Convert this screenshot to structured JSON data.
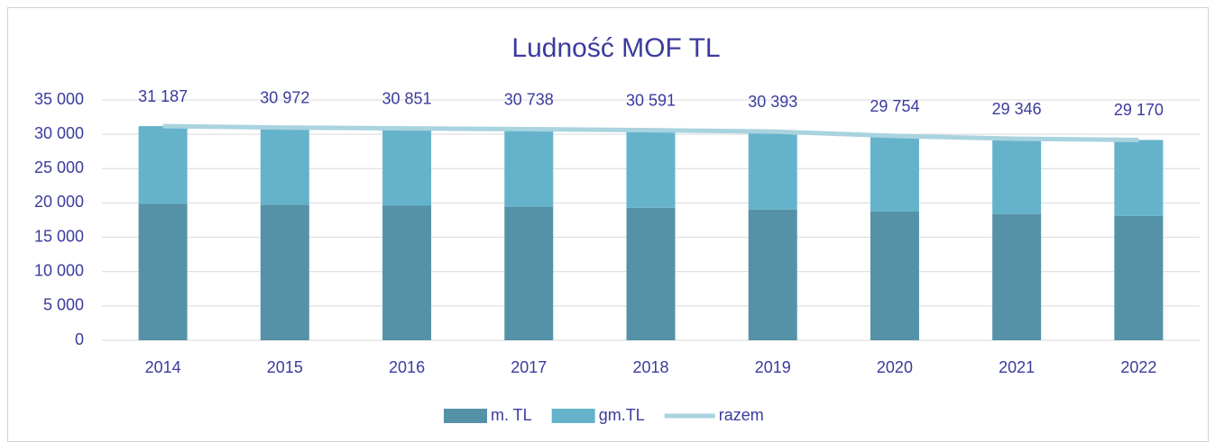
{
  "chart_data": {
    "type": "bar",
    "stacked": true,
    "title": "Ludność MOF TL",
    "categories": [
      "2014",
      "2015",
      "2016",
      "2017",
      "2018",
      "2019",
      "2020",
      "2021",
      "2022"
    ],
    "series": [
      {
        "name": "m. TL",
        "type": "bar",
        "color": "#5592a8",
        "values": [
          19900,
          19750,
          19600,
          19450,
          19300,
          19050,
          18750,
          18400,
          18100
        ]
      },
      {
        "name": "gm.TL",
        "type": "bar",
        "color": "#65b3cb",
        "values": [
          11287,
          11222,
          11251,
          11288,
          11291,
          11343,
          11004,
          10946,
          11070
        ]
      },
      {
        "name": "razem",
        "type": "line",
        "color": "#a9d3df",
        "values": [
          31187,
          30972,
          30851,
          30738,
          30591,
          30393,
          29754,
          29346,
          29170
        ],
        "value_labels": [
          "31 187",
          "30 972",
          "30 851",
          "30 738",
          "30 591",
          "30 393",
          "29 754",
          "29 346",
          "29 170"
        ]
      }
    ],
    "ylim": [
      0,
      35000
    ],
    "yticks": [
      0,
      {
        "value": 5000,
        "label": "5 000"
      },
      {
        "value": 10000,
        "label": "10 000"
      },
      {
        "value": 15000,
        "label": "15 000"
      },
      {
        "value": 20000,
        "label": "20 000"
      },
      {
        "value": 25000,
        "label": "25 000"
      },
      {
        "value": 30000,
        "label": "30 000"
      },
      {
        "value": 35000,
        "label": "35 000"
      }
    ],
    "grid": true,
    "legend": "bottom"
  }
}
